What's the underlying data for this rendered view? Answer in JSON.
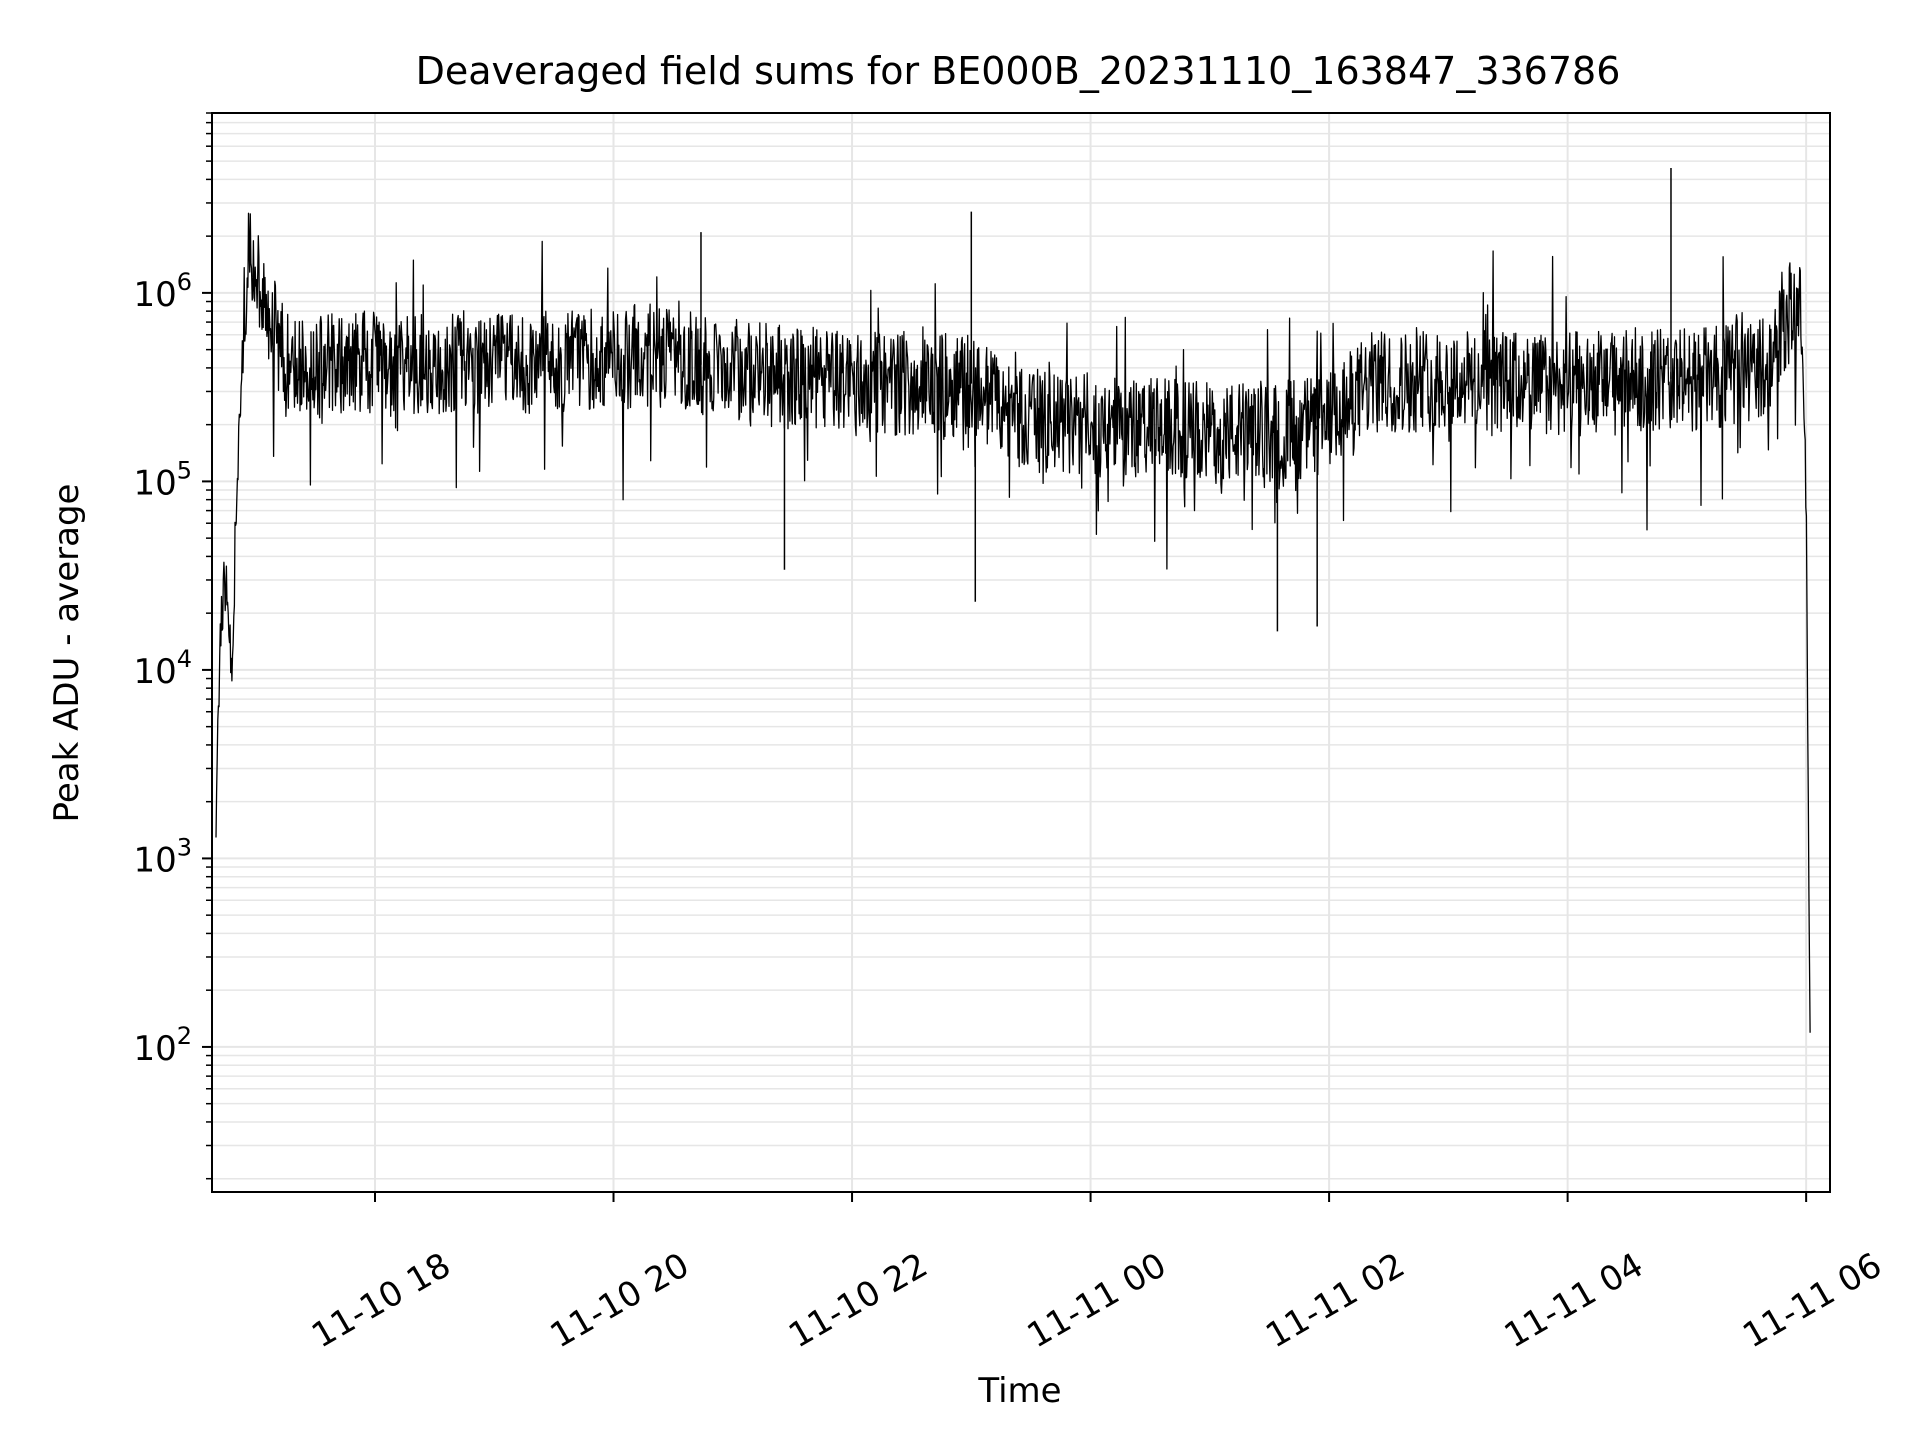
{
  "chart_data": {
    "type": "line",
    "title": "Deaveraged field sums for BE000B_20231110_163847_336786",
    "xlabel": "Time",
    "ylabel": "Peak ADU - average",
    "xlim": [
      "2023-11-10 16:38",
      "2023-11-11 06:12"
    ],
    "ylim": [
      17,
      9000000
    ],
    "yscale": "log",
    "grid": "on (major and minor)",
    "line_color": "#000000",
    "grid_color": "#e6e6e6",
    "x_tick_labels": [
      "11-10 18",
      "11-10 20",
      "11-10 22",
      "11-11 00",
      "11-11 02",
      "11-11 04",
      "11-11 06"
    ],
    "x_tick_values": [
      "2023-11-10 18:00",
      "2023-11-10 20:00",
      "2023-11-10 22:00",
      "2023-11-11 00:00",
      "2023-11-11 02:00",
      "2023-11-11 04:00",
      "2023-11-11 06:00"
    ],
    "y_tick_values": [
      100,
      1000,
      10000,
      100000,
      1000000
    ],
    "y_tick_labels": [
      {
        "base": "10",
        "exp": "2"
      },
      {
        "base": "10",
        "exp": "3"
      },
      {
        "base": "10",
        "exp": "4"
      },
      {
        "base": "10",
        "exp": "5"
      },
      {
        "base": "10",
        "exp": "6"
      }
    ],
    "series": [
      {
        "x": [
          "2023-11-10 16:40",
          "2023-11-10 16:42",
          "2023-11-10 16:45",
          "2023-11-10 16:48",
          "2023-11-10 16:52",
          "2023-11-10 16:56",
          "2023-11-10 17:00",
          "2023-11-10 17:05",
          "2023-11-10 17:10",
          "2023-11-10 17:15",
          "2023-11-10 17:20",
          "2023-11-10 17:30",
          "2023-11-10 17:40",
          "2023-11-10 17:50",
          "2023-11-10 18:00",
          "2023-11-10 18:20",
          "2023-11-10 18:40",
          "2023-11-10 19:00",
          "2023-11-10 19:20",
          "2023-11-10 19:40",
          "2023-11-10 20:00",
          "2023-11-10 20:20",
          "2023-11-10 20:40",
          "2023-11-10 21:00",
          "2023-11-10 21:20",
          "2023-11-10 21:40",
          "2023-11-10 22:00",
          "2023-11-10 22:20",
          "2023-11-10 22:40",
          "2023-11-10 23:00",
          "2023-11-10 23:20",
          "2023-11-10 23:40",
          "2023-11-11 00:00",
          "2023-11-11 00:20",
          "2023-11-11 00:40",
          "2023-11-11 01:00",
          "2023-11-11 01:20",
          "2023-11-11 01:40",
          "2023-11-11 02:00",
          "2023-11-11 02:20",
          "2023-11-11 02:40",
          "2023-11-11 03:00",
          "2023-11-11 03:20",
          "2023-11-11 03:40",
          "2023-11-11 04:00",
          "2023-11-11 04:20",
          "2023-11-11 04:40",
          "2023-11-11 05:00",
          "2023-11-11 05:20",
          "2023-11-11 05:40",
          "2023-11-11 05:48",
          "2023-11-11 05:55",
          "2023-11-11 05:58",
          "2023-11-11 06:00",
          "2023-11-11 06:02"
        ],
        "y": [
          1300,
          15000,
          30000,
          9000,
          300000,
          1500000,
          1200000,
          900000,
          600000,
          450000,
          420000,
          400000,
          420000,
          430000,
          420000,
          400000,
          430000,
          420000,
          400000,
          430000,
          450000,
          470000,
          420000,
          400000,
          360000,
          350000,
          340000,
          330000,
          320000,
          330000,
          230000,
          200000,
          200000,
          190000,
          190000,
          180000,
          180000,
          190000,
          200000,
          330000,
          340000,
          350000,
          340000,
          330000,
          330000,
          340000,
          350000,
          350000,
          360000,
          420000,
          700000,
          850000,
          700000,
          80000,
          100
        ]
      }
    ],
    "spikes": [
      {
        "x": "2023-11-10 23:00",
        "y": 2700000
      },
      {
        "x": "2023-11-11 04:52",
        "y": 4600000
      },
      {
        "x": "2023-11-10 20:44",
        "y": 2100000
      },
      {
        "x": "2023-11-11 01:34",
        "y": 16000
      },
      {
        "x": "2023-11-11 01:54",
        "y": 17000
      },
      {
        "x": "2023-11-10 23:02",
        "y": 23000
      },
      {
        "x": "2023-11-10 21:26",
        "y": 34000
      }
    ]
  }
}
